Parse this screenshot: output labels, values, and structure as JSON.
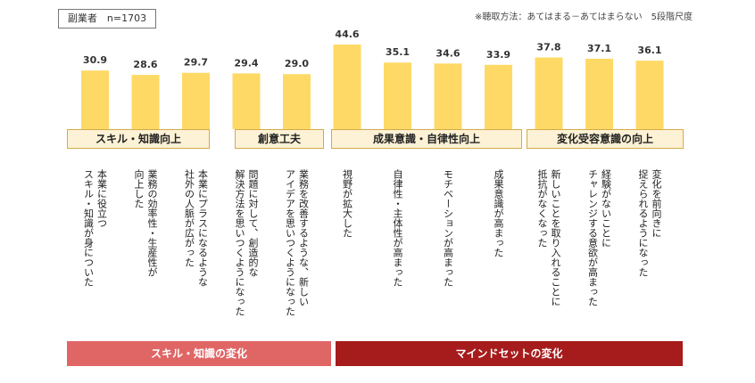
{
  "sample_label": "副業者　n=1703",
  "scale_note": "※聴取方法：あてはまる－あてはまらない　5段階尺度",
  "colors": {
    "bar": "#ffd966",
    "group_fill": "#fdf2d5",
    "group_border": "#d6a94a",
    "band_left": "#e06666",
    "band_right": "#a61c1c"
  },
  "groups": [
    {
      "label": "スキル・知識向上"
    },
    {
      "label": "創意工夫"
    },
    {
      "label": "成果意識・自律性向上"
    },
    {
      "label": "変化受容意識の向上"
    }
  ],
  "bands": [
    {
      "label": "スキル・知識の変化"
    },
    {
      "label": "マインドセットの変化"
    }
  ],
  "chart_data": {
    "type": "bar",
    "categories": [
      "本業に役立つ\nスキル・知識が身についた",
      "業務の効率性・生産性が\n向上した",
      "本業にプラスになるような\n社外の人脈が広がった",
      "問題に対して、創造的な\n解決方法を思いつくようになった",
      "業務を改善するような、新しい\nアイデアを思いつくようになった",
      "視野が拡大した",
      "自律性・主体性が高まった",
      "モチベーションが高まった",
      "成果意識が高まった",
      "新しいことを取り入れることに\n抵抗がなくなった",
      "経験がないことに\nチャレンジする意欲が高まった",
      "変化を前向きに\n捉えられるようになった"
    ],
    "values": [
      30.9,
      28.6,
      29.7,
      29.4,
      29.0,
      44.6,
      35.1,
      34.6,
      33.9,
      37.8,
      37.1,
      36.1
    ],
    "value_labels": [
      "30.9",
      "28.6",
      "29.7",
      "29.4",
      "29.0",
      "44.6",
      "35.1",
      "34.6",
      "33.9",
      "37.8",
      "37.1",
      "36.1"
    ],
    "ylim": [
      0,
      44.6
    ],
    "grid": false,
    "legend": "none"
  }
}
